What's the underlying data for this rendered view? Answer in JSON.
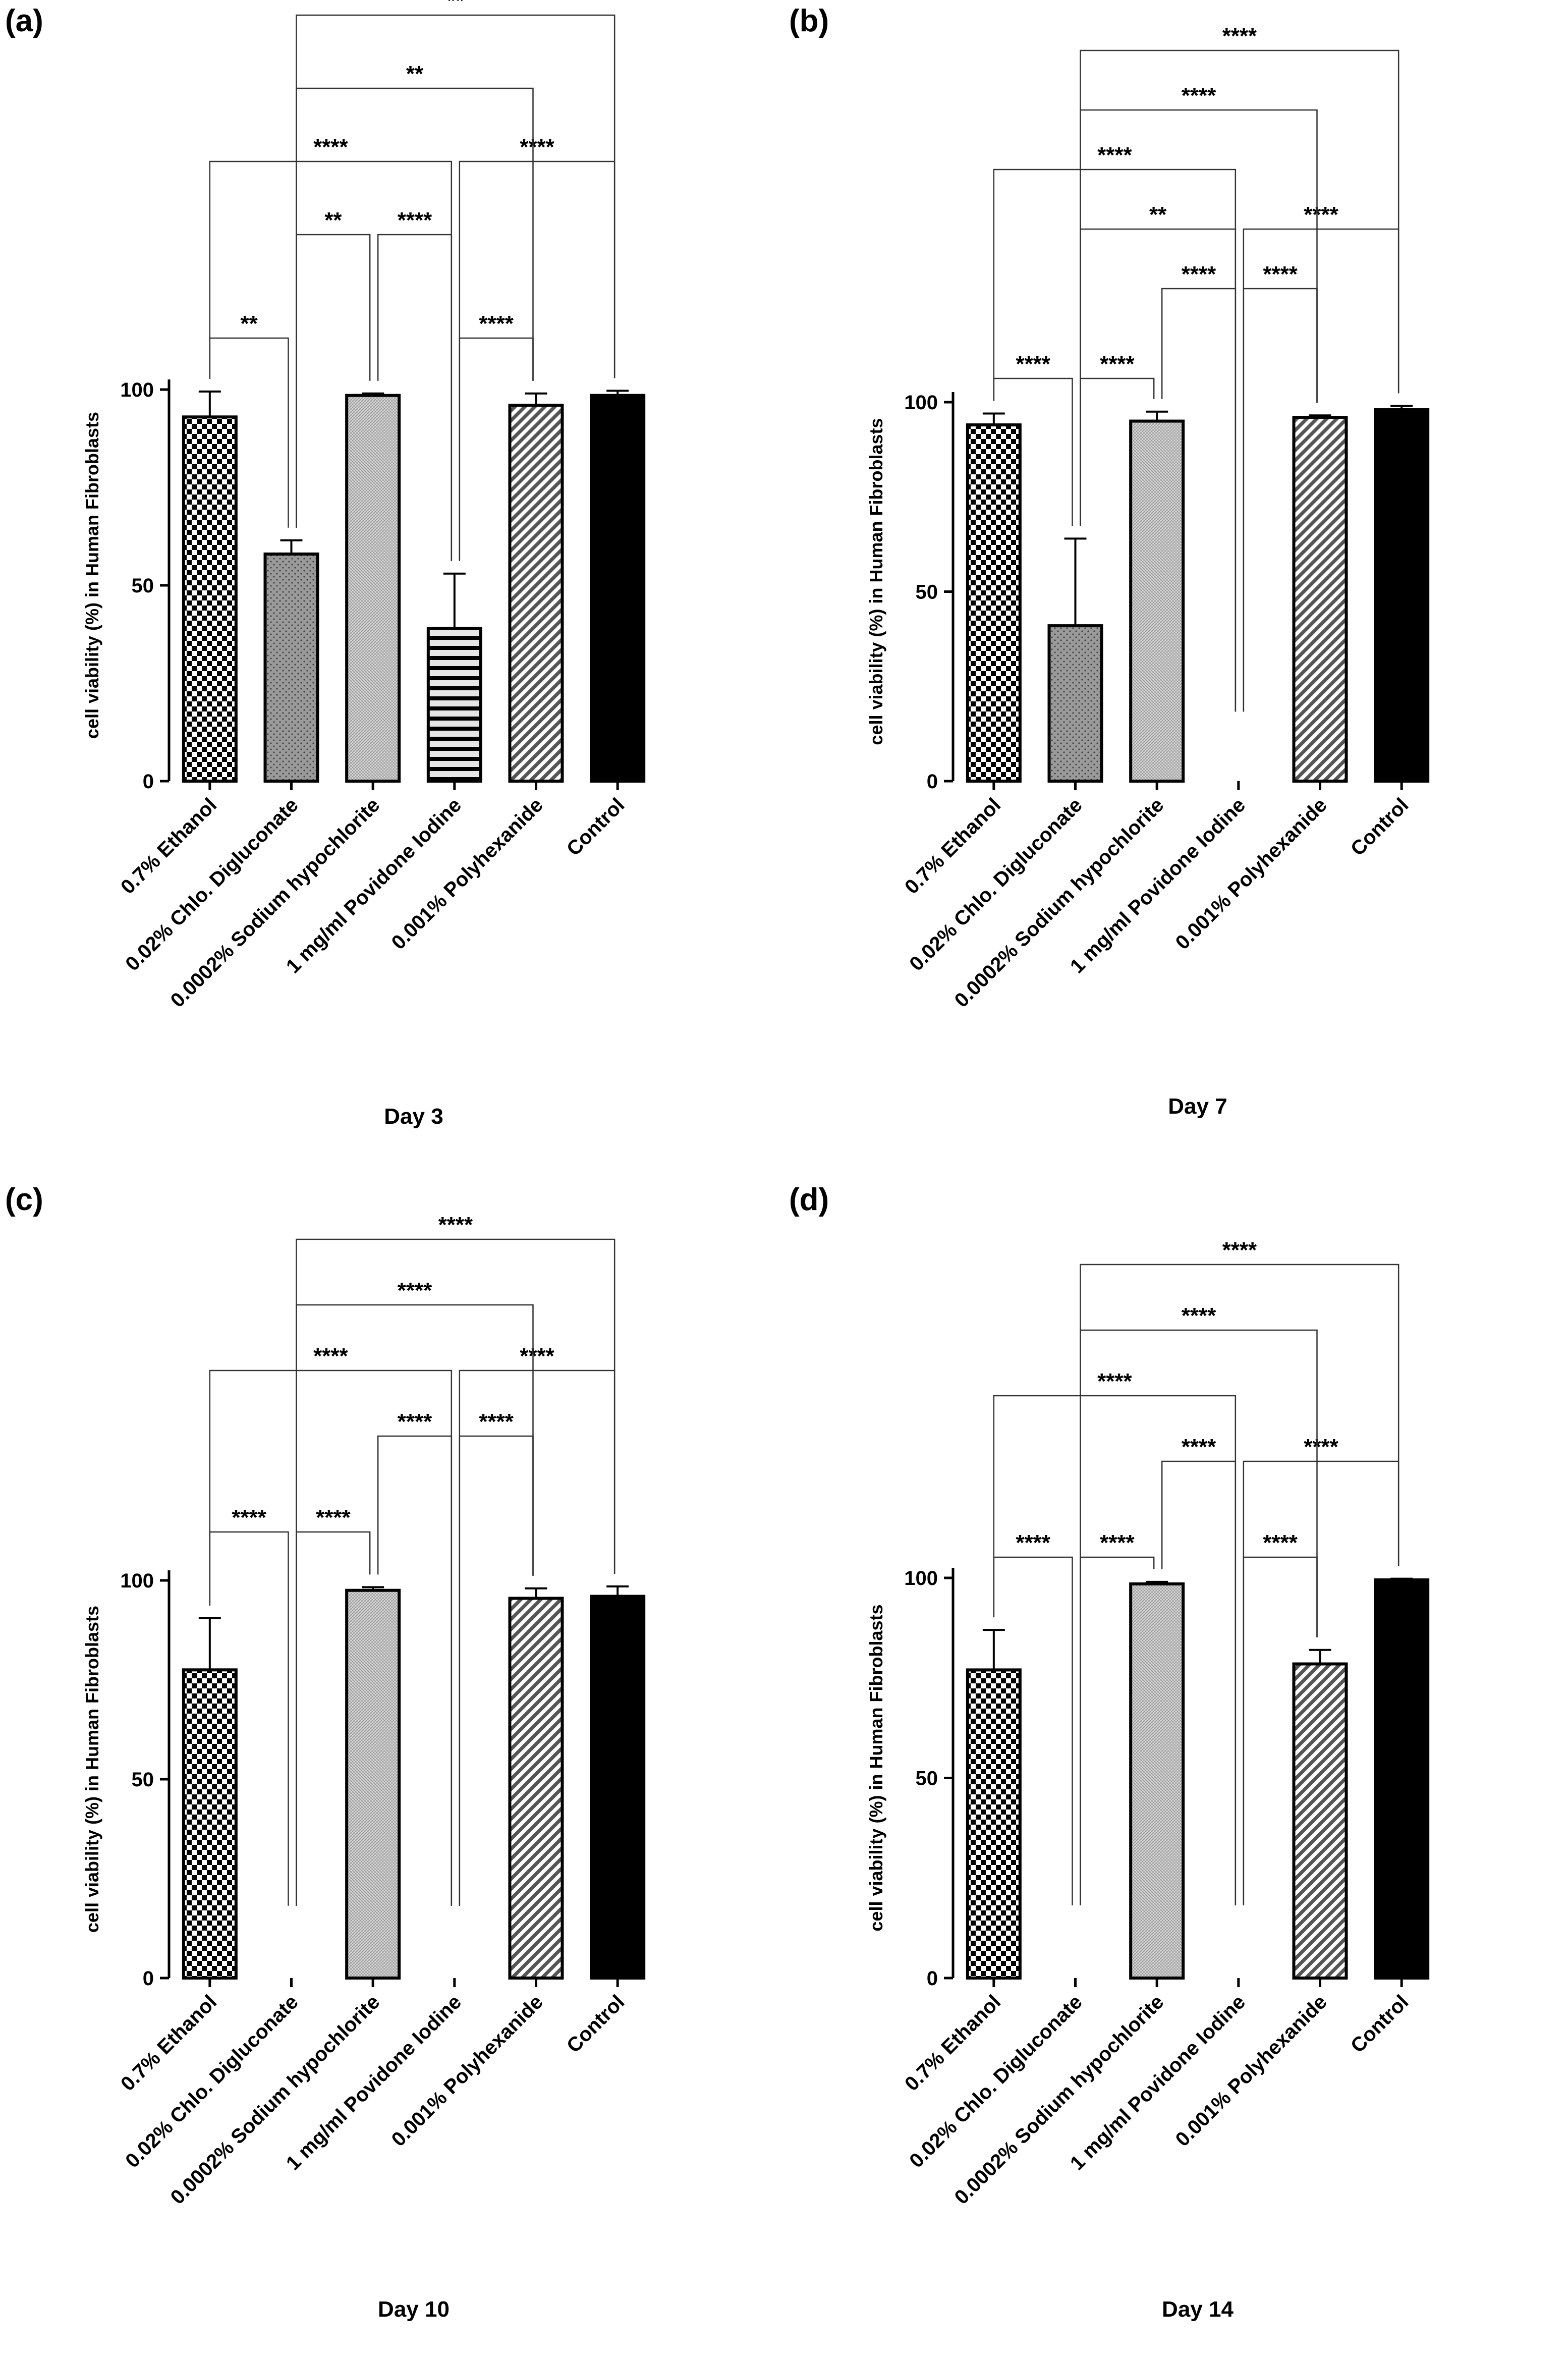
{
  "colors": {
    "ink": "#000000",
    "bar_fill_control": "#000000",
    "bar_fill_light": "#d9d9d9",
    "bar_fill_mid": "#9a9a9a",
    "background": "#ffffff"
  },
  "pattern_names": [
    "checker-pattern",
    "dots-pattern",
    "fine-grid-pattern",
    "horizontal-stripes-pattern",
    "diagonal-stripes-pattern",
    "solid-black"
  ],
  "chart_data": [
    {
      "type": "bar",
      "panel_label": "(a)",
      "title": "Day 3",
      "xlabel": "Day 3",
      "ylabel": "cell viability (%) in Human Fibroblasts",
      "ylim": [
        0,
        100
      ],
      "yticks": [
        0,
        50,
        100
      ],
      "categories": [
        "0.7% Ethanol",
        "0.02% Chlo. Digluconate",
        "0.0002% Sodium hypochlorite",
        "1 mg/ml Povidone Iodine",
        "0.001% Polyhexanide",
        "Control"
      ],
      "values": [
        93,
        58,
        98.5,
        39,
        96,
        98.5
      ],
      "errors": [
        6.5,
        3.5,
        0.5,
        14,
        3,
        1.2
      ],
      "significance": [
        {
          "from": 0,
          "to": 1,
          "label": "**",
          "level": 0
        },
        {
          "from": 1,
          "to": 2,
          "label": "**",
          "level": 1
        },
        {
          "from": 2,
          "to": 3,
          "label": "****",
          "level": 1
        },
        {
          "from": 3,
          "to": 4,
          "label": "****",
          "level": 0
        },
        {
          "from": 0,
          "to": 3,
          "label": "****",
          "level": 2
        },
        {
          "from": 3,
          "to": 5,
          "label": "****",
          "level": 2
        },
        {
          "from": 1,
          "to": 4,
          "label": "**",
          "level": 3
        },
        {
          "from": 1,
          "to": 5,
          "label": "**",
          "level": 4
        }
      ]
    },
    {
      "type": "bar",
      "panel_label": "(b)",
      "title": "Day 7",
      "xlabel": "Day 7",
      "ylabel": "cell viability (%) in Human Fibroblasts",
      "ylim": [
        0,
        100
      ],
      "yticks": [
        0,
        50,
        100
      ],
      "categories": [
        "0.7% Ethanol",
        "0.02% Chlo. Digluconate",
        "0.0002% Sodium hypochlorite",
        "1 mg/ml Povidone Iodine",
        "0.001% Polyhexanide",
        "Control"
      ],
      "values": [
        94,
        41,
        95,
        0,
        96,
        98
      ],
      "errors": [
        3,
        23,
        2.5,
        0,
        0.5,
        1
      ],
      "significance": [
        {
          "from": 0,
          "to": 1,
          "label": "****",
          "level": 0
        },
        {
          "from": 1,
          "to": 2,
          "label": "****",
          "level": 0
        },
        {
          "from": 2,
          "to": 3,
          "label": "****",
          "level": 1
        },
        {
          "from": 3,
          "to": 4,
          "label": "****",
          "level": 1
        },
        {
          "from": 1,
          "to": 3,
          "label": "**",
          "level": 2
        },
        {
          "from": 3,
          "to": 5,
          "label": "****",
          "level": 2
        },
        {
          "from": 0,
          "to": 3,
          "label": "****",
          "level": 3
        },
        {
          "from": 1,
          "to": 4,
          "label": "****",
          "level": 4
        },
        {
          "from": 1,
          "to": 5,
          "label": "****",
          "level": 5
        }
      ]
    },
    {
      "type": "bar",
      "panel_label": "(c)",
      "title": "Day 10",
      "xlabel": "Day 10",
      "ylabel": "cell viability (%) in Human Fibroblasts",
      "ylim": [
        0,
        100
      ],
      "yticks": [
        0,
        50,
        100
      ],
      "categories": [
        "0.7% Ethanol",
        "0.02% Chlo. Digluconate",
        "0.0002% Sodium hypochlorite",
        "1 mg/ml Povidone Iodine",
        "0.001% Polyhexanide",
        "Control"
      ],
      "values": [
        77.5,
        0,
        97.5,
        0,
        95.5,
        96
      ],
      "errors": [
        13,
        0,
        0.8,
        0,
        2.5,
        2.5
      ],
      "significance": [
        {
          "from": 0,
          "to": 1,
          "label": "****",
          "level": 0
        },
        {
          "from": 1,
          "to": 2,
          "label": "****",
          "level": 0
        },
        {
          "from": 2,
          "to": 3,
          "label": "****",
          "level": 1
        },
        {
          "from": 3,
          "to": 4,
          "label": "****",
          "level": 1
        },
        {
          "from": 0,
          "to": 3,
          "label": "****",
          "level": 2
        },
        {
          "from": 3,
          "to": 5,
          "label": "****",
          "level": 2
        },
        {
          "from": 1,
          "to": 4,
          "label": "****",
          "level": 3
        },
        {
          "from": 1,
          "to": 5,
          "label": "****",
          "level": 4
        }
      ]
    },
    {
      "type": "bar",
      "panel_label": "(d)",
      "title": "Day 14",
      "xlabel": "Day 14",
      "ylabel": "cell viability (%) in Human Fibroblasts",
      "ylim": [
        0,
        100
      ],
      "yticks": [
        0,
        50,
        100
      ],
      "categories": [
        "0.7% Ethanol",
        "0.02% Chlo. Digluconate",
        "0.0002% Sodium hypochlorite",
        "1 mg/ml Povidone Iodine",
        "0.001% Polyhexanide",
        "Control"
      ],
      "values": [
        77,
        0,
        98.5,
        0,
        78.5,
        99.5
      ],
      "errors": [
        10,
        0,
        0.5,
        0,
        3.5,
        0.3
      ],
      "significance": [
        {
          "from": 0,
          "to": 1,
          "label": "****",
          "level": 0
        },
        {
          "from": 1,
          "to": 2,
          "label": "****",
          "level": 0
        },
        {
          "from": 3,
          "to": 4,
          "label": "****",
          "level": 0
        },
        {
          "from": 2,
          "to": 3,
          "label": "****",
          "level": 1
        },
        {
          "from": 3,
          "to": 5,
          "label": "****",
          "level": 1
        },
        {
          "from": 0,
          "to": 3,
          "label": "****",
          "level": 2
        },
        {
          "from": 1,
          "to": 4,
          "label": "****",
          "level": 3
        },
        {
          "from": 1,
          "to": 5,
          "label": "****",
          "level": 4
        }
      ]
    }
  ]
}
